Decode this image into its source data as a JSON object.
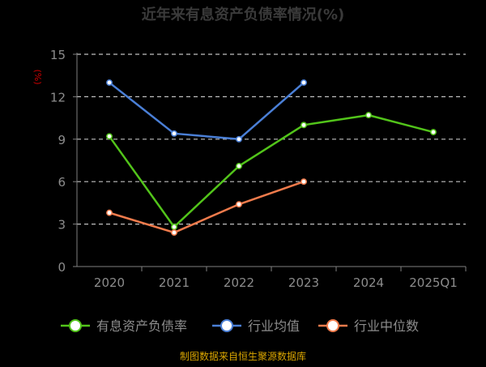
{
  "chart_data": {
    "type": "line",
    "title": "近年来有息资产负债率情况(%)",
    "ylabel": "(%)",
    "xlabel": "",
    "ylim": [
      0,
      15
    ],
    "yticks": [
      "0",
      "3",
      "6",
      "9",
      "12",
      "15"
    ],
    "grid": true,
    "legend_position": "bottom",
    "categories": [
      "2020",
      "2021",
      "2022",
      "2023",
      "2024",
      "2025Q1"
    ],
    "series": [
      {
        "name": "有息资产负债率",
        "color": "#52c41a",
        "values": [
          9.2,
          2.8,
          7.1,
          10.0,
          10.7,
          9.5
        ]
      },
      {
        "name": "行业均值",
        "color": "#4a7fd6",
        "values": [
          13.0,
          9.4,
          9.0,
          13.0,
          null,
          null
        ]
      },
      {
        "name": "行业中位数",
        "color": "#f07b4c",
        "values": [
          3.8,
          2.4,
          4.4,
          6.0,
          null,
          null
        ]
      }
    ]
  },
  "footer": {
    "source_text": "制图数据来自恒生聚源数据库"
  },
  "colors": {
    "background": "#000000",
    "title": "#3a3a3a",
    "axis_text": "#8c8c8c",
    "grid": "#bfbfbf",
    "axis_line": "#808080",
    "ylabel": "#cc0000",
    "legend_text": "#8c8c8c",
    "footer": "#d9a500"
  }
}
